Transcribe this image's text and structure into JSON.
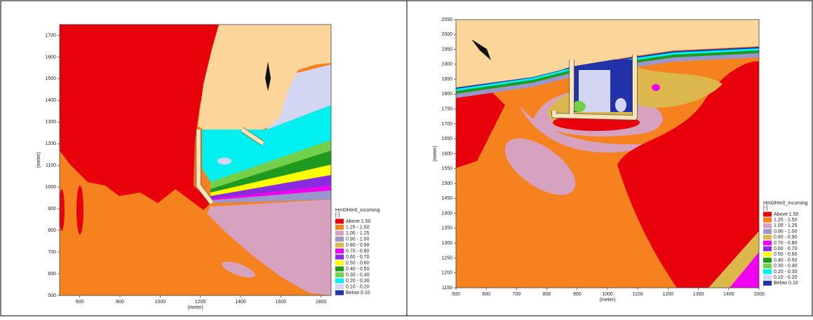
{
  "chart_data": [
    {
      "type": "contour",
      "xlabel": "(meter)",
      "ylabel": "(meter)",
      "xlim": [
        500,
        1850
      ],
      "ylim": [
        500,
        1750
      ],
      "xticks": [
        600,
        800,
        1000,
        1200,
        1400,
        1600,
        1800
      ],
      "yticks": [
        500,
        600,
        700,
        800,
        900,
        1000,
        1100,
        1200,
        1300,
        1400,
        1500,
        1600,
        1700
      ],
      "legend_title": "Hm0/Hm0_incoming",
      "legend_unit": "[-]",
      "levels": [
        {
          "label": "Above 1.50",
          "color": "#e8000b"
        },
        {
          "label": "1.25 - 1.50",
          "color": "#f5821f"
        },
        {
          "label": "1.00 - 1.25",
          "color": "#d7a2bf"
        },
        {
          "label": "0.90 - 1.00",
          "color": "#9a97cc"
        },
        {
          "label": "0.80 - 0.90",
          "color": "#dcb84c"
        },
        {
          "label": "0.70 - 0.80",
          "color": "#f000f0"
        },
        {
          "label": "0.60 - 0.70",
          "color": "#8a2be2"
        },
        {
          "label": "0.50 - 0.60",
          "color": "#ffff00"
        },
        {
          "label": "0.40 - 0.50",
          "color": "#1f9a1f"
        },
        {
          "label": "0.30 - 0.40",
          "color": "#72d04a"
        },
        {
          "label": "0.20 - 0.30",
          "color": "#00f0f0"
        },
        {
          "label": "0.10 - 0.20",
          "color": "#d2d6f2"
        },
        {
          "label": "Below 0.10",
          "color": "#2232a8"
        }
      ]
    },
    {
      "type": "contour",
      "xlabel": "(meter)",
      "ylabel": "(meter)",
      "xlim": [
        500,
        1500
      ],
      "ylim": [
        1150,
        2050
      ],
      "xticks": [
        500,
        600,
        700,
        800,
        900,
        1000,
        1100,
        1200,
        1300,
        1400,
        1500
      ],
      "yticks": [
        1150,
        1200,
        1250,
        1300,
        1350,
        1400,
        1450,
        1500,
        1550,
        1600,
        1650,
        1700,
        1750,
        1800,
        1850,
        1900,
        1950,
        2000,
        2050
      ],
      "legend_title": "Hm0/Hm0_incoming",
      "legend_unit": "[-]",
      "levels": [
        {
          "label": "Above 1.50",
          "color": "#e8000b"
        },
        {
          "label": "1.25 - 1.50",
          "color": "#f5821f"
        },
        {
          "label": "1.00 - 1.25",
          "color": "#d7a2bf"
        },
        {
          "label": "0.90 - 1.00",
          "color": "#9a97cc"
        },
        {
          "label": "0.80 - 0.90",
          "color": "#dcb84c"
        },
        {
          "label": "0.70 - 0.80",
          "color": "#f000f0"
        },
        {
          "label": "0.60 - 0.70",
          "color": "#8a2be2"
        },
        {
          "label": "0.50 - 0.60",
          "color": "#ffff00"
        },
        {
          "label": "0.40 - 0.50",
          "color": "#1f9a1f"
        },
        {
          "label": "0.30 - 0.40",
          "color": "#72d04a"
        },
        {
          "label": "0.20 - 0.30",
          "color": "#00f0f0"
        },
        {
          "label": "0.10 - 0.20",
          "color": "#d2d6f2"
        },
        {
          "label": "Below 0.10",
          "color": "#2232a8"
        }
      ]
    }
  ]
}
